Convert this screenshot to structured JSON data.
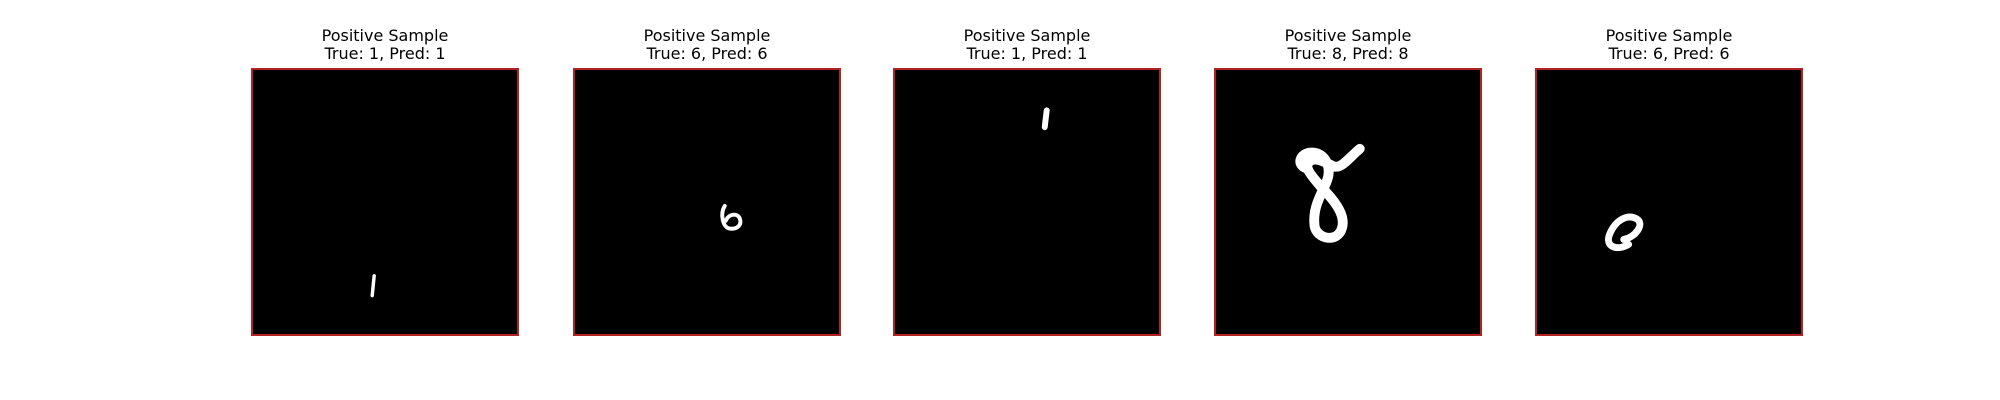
{
  "figure": {
    "border_color": "#b22222",
    "image_background": "#000000",
    "panels": [
      {
        "heading": "Positive Sample",
        "subheading": "True: 1, Pred: 1",
        "digit_icon": "digit-1-icon"
      },
      {
        "heading": "Positive Sample",
        "subheading": "True: 6, Pred: 6",
        "digit_icon": "digit-6-icon"
      },
      {
        "heading": "Positive Sample",
        "subheading": "True: 1, Pred: 1",
        "digit_icon": "digit-1-icon"
      },
      {
        "heading": "Positive Sample",
        "subheading": "True: 8, Pred: 8",
        "digit_icon": "digit-8-icon"
      },
      {
        "heading": "Positive Sample",
        "subheading": "True: 6, Pred: 6",
        "digit_icon": "digit-6-icon"
      }
    ]
  }
}
